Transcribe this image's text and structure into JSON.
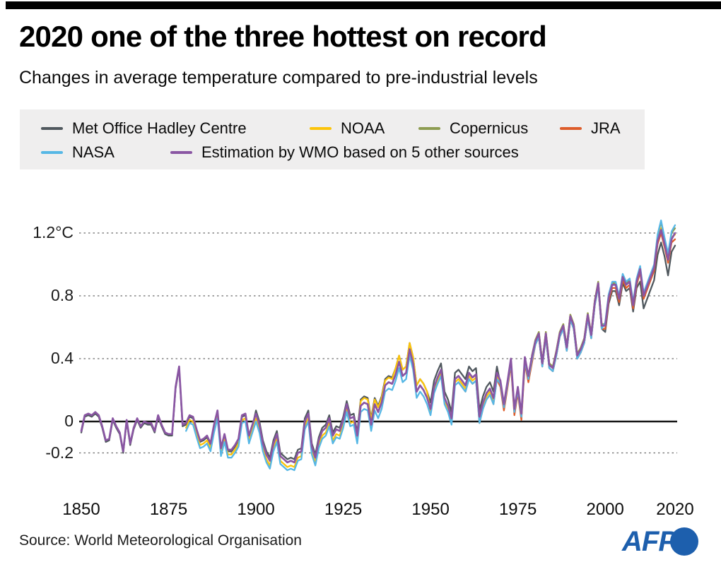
{
  "page": {
    "title": "2020 one of the three hottest on record",
    "subtitle": "Changes in average temperature compared to pre-industrial levels",
    "source": "Source: World Meteorological Organisation",
    "brand": {
      "name": "AFP",
      "color": "#1d5fad"
    }
  },
  "chart_data": {
    "type": "line",
    "title": "2020 one of the three hottest on record",
    "subtitle": "Changes in average temperature compared to pre-industrial levels",
    "unit": "°C",
    "xlim": [
      1850,
      2020
    ],
    "ylim": [
      -0.35,
      1.35
    ],
    "grid": "horizontal dashed",
    "legend_position": "top",
    "x_ticks": [
      {
        "value": 1850,
        "label": "1850"
      },
      {
        "value": 1875,
        "label": "1875"
      },
      {
        "value": 1900,
        "label": "1900"
      },
      {
        "value": 1925,
        "label": "1925"
      },
      {
        "value": 1950,
        "label": "1950"
      },
      {
        "value": 1975,
        "label": "1975"
      },
      {
        "value": 2000,
        "label": "2000"
      },
      {
        "value": 2020,
        "label": "2020"
      }
    ],
    "y_ticks": [
      {
        "value": 1.2,
        "label": "1.2°C",
        "style": "dashed"
      },
      {
        "value": 0.8,
        "label": "0.8",
        "style": "dashed"
      },
      {
        "value": 0.4,
        "label": "0.4",
        "style": "dashed"
      },
      {
        "value": 0,
        "label": "0",
        "style": "solid-axis"
      },
      {
        "value": -0.2,
        "label": "-0.2",
        "style": "dashed"
      }
    ],
    "series": [
      {
        "name": "Met Office Hadley Centre",
        "color": "#50585e",
        "start_year": 1850,
        "values": [
          -0.07,
          0.03,
          0.04,
          0.03,
          0.05,
          0.03,
          -0.04,
          -0.13,
          -0.12,
          0.01,
          -0.04,
          -0.08,
          -0.2,
          0.0,
          -0.15,
          -0.05,
          0.01,
          -0.04,
          -0.01,
          -0.02,
          -0.02,
          -0.07,
          0.03,
          -0.03,
          -0.08,
          -0.09,
          -0.09,
          0.21,
          0.34,
          -0.03,
          -0.02,
          0.03,
          0.02,
          -0.06,
          -0.13,
          -0.12,
          -0.1,
          -0.15,
          -0.03,
          0.06,
          -0.18,
          -0.09,
          -0.19,
          -0.19,
          -0.16,
          -0.12,
          0.03,
          0.04,
          -0.1,
          -0.03,
          0.07,
          0.0,
          -0.12,
          -0.19,
          -0.23,
          -0.12,
          -0.06,
          -0.2,
          -0.22,
          -0.24,
          -0.23,
          -0.24,
          -0.18,
          -0.17,
          0.02,
          0.07,
          -0.14,
          -0.21,
          -0.1,
          -0.04,
          -0.02,
          0.04,
          -0.07,
          -0.03,
          -0.04,
          0.03,
          0.13,
          0.04,
          0.05,
          -0.07,
          0.14,
          0.16,
          0.15,
          0.02,
          0.15,
          0.1,
          0.16,
          0.27,
          0.29,
          0.28,
          0.34,
          0.42,
          0.33,
          0.35,
          0.5,
          0.41,
          0.23,
          0.27,
          0.24,
          0.19,
          0.12,
          0.26,
          0.32,
          0.37,
          0.19,
          0.14,
          0.06,
          0.31,
          0.33,
          0.3,
          0.27,
          0.35,
          0.32,
          0.34,
          0.07,
          0.16,
          0.22,
          0.25,
          0.19,
          0.35,
          0.24,
          0.09,
          0.23,
          0.38,
          0.06,
          0.2,
          0.03,
          0.39,
          0.27,
          0.39,
          0.49,
          0.54,
          0.35,
          0.54,
          0.34,
          0.32,
          0.42,
          0.54,
          0.59,
          0.45,
          0.65,
          0.59,
          0.4,
          0.44,
          0.5,
          0.66,
          0.53,
          0.74,
          0.86,
          0.59,
          0.57,
          0.75,
          0.83,
          0.83,
          0.74,
          0.88,
          0.83,
          0.85,
          0.7,
          0.85,
          0.89,
          0.72,
          0.78,
          0.84,
          0.9,
          1.06,
          1.14,
          1.05,
          0.93,
          1.08,
          1.12
        ]
      },
      {
        "name": "NOAA",
        "color": "#fcc40a",
        "start_year": 1880,
        "values": [
          -0.04,
          0.01,
          0.0,
          -0.08,
          -0.15,
          -0.14,
          -0.12,
          -0.17,
          -0.05,
          0.04,
          -0.2,
          -0.11,
          -0.21,
          -0.21,
          -0.18,
          -0.14,
          0.01,
          0.02,
          -0.12,
          -0.05,
          0.02,
          -0.05,
          -0.17,
          -0.24,
          -0.28,
          -0.17,
          -0.11,
          -0.25,
          -0.27,
          -0.29,
          -0.28,
          -0.29,
          -0.23,
          -0.22,
          -0.03,
          0.02,
          -0.19,
          -0.26,
          -0.15,
          -0.09,
          -0.07,
          -0.01,
          -0.12,
          -0.08,
          -0.09,
          -0.02,
          0.08,
          -0.01,
          0.0,
          -0.12,
          0.13,
          0.15,
          0.14,
          0.01,
          0.14,
          0.09,
          0.15,
          0.26,
          0.28,
          0.27,
          0.34,
          0.42,
          0.33,
          0.35,
          0.5,
          0.41,
          0.23,
          0.27,
          0.24,
          0.19,
          0.06,
          0.2,
          0.26,
          0.31,
          0.13,
          0.08,
          0.0,
          0.25,
          0.27,
          0.24,
          0.21,
          0.29,
          0.26,
          0.28,
          0.01,
          0.1,
          0.16,
          0.19,
          0.13,
          0.29,
          0.24,
          0.09,
          0.23,
          0.38,
          0.06,
          0.2,
          0.03,
          0.39,
          0.27,
          0.39,
          0.52,
          0.57,
          0.38,
          0.57,
          0.37,
          0.35,
          0.45,
          0.57,
          0.62,
          0.48,
          0.68,
          0.62,
          0.43,
          0.47,
          0.53,
          0.69,
          0.56,
          0.77,
          0.89,
          0.62,
          0.62,
          0.8,
          0.88,
          0.88,
          0.79,
          0.93,
          0.88,
          0.9,
          0.75,
          0.9,
          0.98,
          0.81,
          0.87,
          0.93,
          0.99,
          1.16,
          1.23,
          1.14,
          1.04,
          1.17,
          1.19
        ]
      },
      {
        "name": "Copernicus",
        "color": "#8d9c51",
        "start_year": 1979,
        "values": [
          0.42,
          0.52,
          0.57,
          0.38,
          0.57,
          0.37,
          0.35,
          0.45,
          0.57,
          0.62,
          0.48,
          0.68,
          0.62,
          0.43,
          0.47,
          0.53,
          0.69,
          0.56,
          0.77,
          0.89,
          0.62,
          0.62,
          0.8,
          0.88,
          0.88,
          0.79,
          0.93,
          0.88,
          0.9,
          0.75,
          0.9,
          0.98,
          0.81,
          0.87,
          0.93,
          0.99,
          1.18,
          1.27,
          1.16,
          1.06,
          1.2,
          1.23
        ]
      },
      {
        "name": "JRA",
        "color": "#dd5c2a",
        "start_year": 1958,
        "values": [
          0.25,
          0.22,
          0.19,
          0.27,
          0.24,
          0.26,
          -0.01,
          0.08,
          0.14,
          0.17,
          0.11,
          0.27,
          0.22,
          0.07,
          0.21,
          0.36,
          0.04,
          0.18,
          0.01,
          0.37,
          0.25,
          0.37,
          0.49,
          0.54,
          0.35,
          0.54,
          0.34,
          0.32,
          0.42,
          0.54,
          0.59,
          0.45,
          0.65,
          0.59,
          0.4,
          0.44,
          0.5,
          0.66,
          0.53,
          0.74,
          0.86,
          0.59,
          0.59,
          0.77,
          0.85,
          0.85,
          0.76,
          0.9,
          0.85,
          0.87,
          0.72,
          0.87,
          0.95,
          0.78,
          0.84,
          0.9,
          0.96,
          1.13,
          1.2,
          1.11,
          1.01,
          1.14,
          1.16
        ]
      },
      {
        "name": "NASA",
        "color": "#56b7e5",
        "start_year": 1880,
        "values": [
          -0.06,
          -0.01,
          -0.02,
          -0.1,
          -0.17,
          -0.16,
          -0.14,
          -0.19,
          -0.07,
          0.02,
          -0.22,
          -0.13,
          -0.23,
          -0.23,
          -0.2,
          -0.16,
          -0.01,
          0.0,
          -0.14,
          -0.07,
          0.0,
          -0.07,
          -0.19,
          -0.26,
          -0.3,
          -0.19,
          -0.13,
          -0.27,
          -0.29,
          -0.31,
          -0.3,
          -0.31,
          -0.25,
          -0.24,
          -0.05,
          0.0,
          -0.21,
          -0.28,
          -0.17,
          -0.11,
          -0.09,
          -0.03,
          -0.14,
          -0.1,
          -0.11,
          -0.04,
          0.06,
          -0.03,
          -0.02,
          -0.14,
          0.06,
          0.08,
          0.07,
          -0.06,
          0.07,
          0.02,
          0.08,
          0.19,
          0.21,
          0.2,
          0.26,
          0.34,
          0.25,
          0.27,
          0.42,
          0.33,
          0.15,
          0.19,
          0.16,
          0.11,
          0.04,
          0.18,
          0.24,
          0.29,
          0.11,
          0.06,
          -0.02,
          0.23,
          0.25,
          0.22,
          0.19,
          0.27,
          0.24,
          0.26,
          -0.01,
          0.08,
          0.14,
          0.17,
          0.11,
          0.27,
          0.24,
          0.09,
          0.23,
          0.38,
          0.06,
          0.2,
          0.03,
          0.39,
          0.27,
          0.39,
          0.49,
          0.54,
          0.35,
          0.54,
          0.34,
          0.32,
          0.42,
          0.54,
          0.59,
          0.45,
          0.65,
          0.59,
          0.4,
          0.44,
          0.5,
          0.66,
          0.53,
          0.74,
          0.86,
          0.59,
          0.63,
          0.81,
          0.89,
          0.89,
          0.8,
          0.94,
          0.89,
          0.91,
          0.76,
          0.91,
          0.99,
          0.82,
          0.88,
          0.94,
          1.0,
          1.19,
          1.28,
          1.17,
          1.07,
          1.21,
          1.25
        ]
      },
      {
        "name": "Estimation by WMO based on 5 other sources",
        "color": "#8a56a3",
        "start_year": 1850,
        "values": [
          -0.06,
          0.04,
          0.05,
          0.04,
          0.06,
          0.04,
          -0.03,
          -0.12,
          -0.11,
          0.02,
          -0.03,
          -0.07,
          -0.19,
          0.01,
          -0.14,
          -0.04,
          0.02,
          -0.03,
          0.0,
          -0.01,
          -0.01,
          -0.06,
          0.04,
          -0.02,
          -0.07,
          -0.08,
          -0.08,
          0.22,
          0.35,
          -0.02,
          -0.01,
          0.04,
          0.03,
          -0.05,
          -0.12,
          -0.11,
          -0.09,
          -0.14,
          -0.02,
          0.07,
          -0.17,
          -0.08,
          -0.18,
          -0.18,
          -0.15,
          -0.11,
          0.04,
          0.05,
          -0.09,
          -0.02,
          0.05,
          -0.02,
          -0.14,
          -0.21,
          -0.25,
          -0.14,
          -0.08,
          -0.22,
          -0.24,
          -0.26,
          -0.25,
          -0.26,
          -0.2,
          -0.19,
          0.0,
          0.05,
          -0.16,
          -0.23,
          -0.12,
          -0.06,
          -0.04,
          0.02,
          -0.09,
          -0.05,
          -0.06,
          0.01,
          0.11,
          0.02,
          0.03,
          -0.09,
          0.1,
          0.12,
          0.11,
          -0.02,
          0.11,
          0.06,
          0.12,
          0.23,
          0.25,
          0.24,
          0.3,
          0.38,
          0.29,
          0.31,
          0.46,
          0.37,
          0.19,
          0.23,
          0.2,
          0.15,
          0.08,
          0.22,
          0.28,
          0.33,
          0.15,
          0.1,
          0.02,
          0.27,
          0.29,
          0.26,
          0.23,
          0.31,
          0.28,
          0.3,
          0.03,
          0.12,
          0.18,
          0.21,
          0.15,
          0.31,
          0.26,
          0.11,
          0.25,
          0.4,
          0.08,
          0.22,
          0.05,
          0.41,
          0.29,
          0.41,
          0.51,
          0.56,
          0.37,
          0.56,
          0.36,
          0.34,
          0.44,
          0.56,
          0.61,
          0.47,
          0.67,
          0.61,
          0.42,
          0.46,
          0.52,
          0.68,
          0.55,
          0.76,
          0.88,
          0.61,
          0.61,
          0.79,
          0.87,
          0.87,
          0.78,
          0.92,
          0.87,
          0.89,
          0.74,
          0.89,
          0.97,
          0.8,
          0.86,
          0.92,
          0.98,
          1.15,
          1.22,
          1.13,
          1.03,
          1.16,
          1.2
        ]
      }
    ]
  }
}
